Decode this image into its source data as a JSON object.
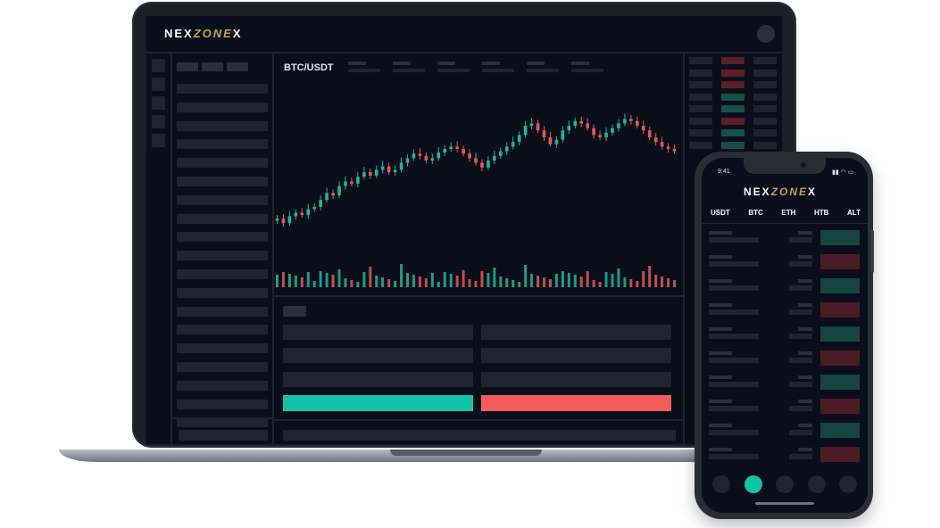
{
  "laptop": {
    "brand_main": "NEX",
    "brand_accent": "ZONE",
    "brand_x": "X",
    "pair": "BTC/USDT",
    "colors": {
      "bull": "#1fb59a",
      "bear": "#e15a5a",
      "buy": "#14c2a6",
      "sell": "#f45c5c"
    }
  },
  "phone": {
    "time": "9:41",
    "brand_main": "NEX",
    "brand_accent": "ZONE",
    "brand_x": "X",
    "tabs": [
      "USDT",
      "BTC",
      "ETH",
      "HTB",
      "ALT"
    ]
  }
}
